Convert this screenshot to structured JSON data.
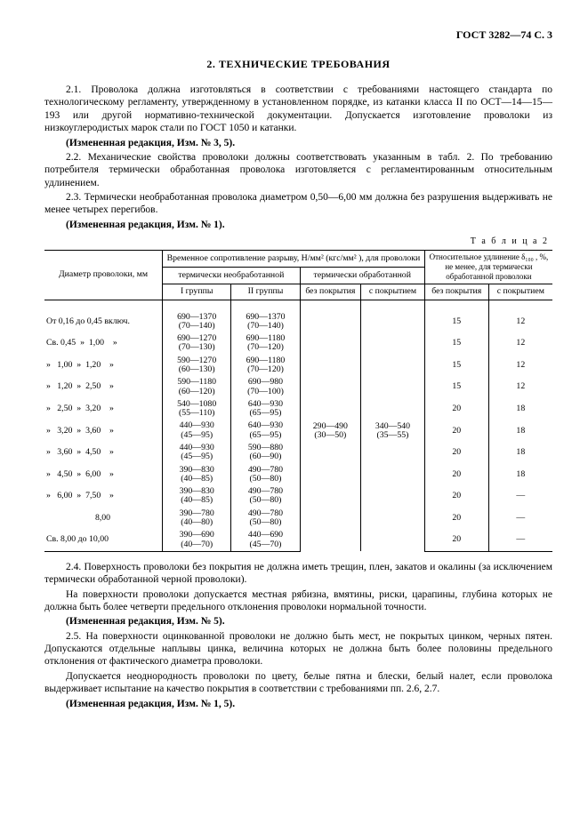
{
  "page_header": "ГОСТ 3282—74 С. 3",
  "section_title": "2. ТЕХНИЧЕСКИЕ ТРЕБОВАНИЯ",
  "p21": "2.1. Проволока должна изготовляться в соответствии с требованиями настоящего стандарта по технологическому регламенту, утвержденному в установленном порядке, из катанки класса II по ОСТ—14—15—193 или другой нормативно-технической документации. Допускается изготовление проволоки из низкоуглеродистых марок стали по ГОСТ 1050 и катанки.",
  "p21_note": "(Измененная редакция, Изм. № 3, 5).",
  "p22": "2.2. Механические свойства проволоки должны соответствовать указанным в табл. 2. По требованию потребителя термически обработанная проволока изготовляется с регламентированным относительным удлинением.",
  "p23": "2.3. Термически необработанная проволока диаметром 0,50—6,00 мм должна без разрушения выдерживать не менее четырех перегибов.",
  "p23_note": "(Измененная редакция, Изм. № 1).",
  "table_label": "Т а б л и ц а   2",
  "tbl": {
    "h_diam": "Диаметр проволоки, мм",
    "h_tensile": "Временное сопротивление разрыву, Н/мм² (кгс/мм² ), для проволоки",
    "h_elong": "Относительное удлинение δ₁₀₀ , %, не менее, для термически обработанной проволоки",
    "h_untreated": "термически необработанной",
    "h_treated": "термически обработанной",
    "h_g1": "I группы",
    "h_g2": "II группы",
    "h_nocoat": "без покрытия",
    "h_coat": "с покрытием",
    "rows": [
      {
        "d": "От 0,16 до 0,45 включ.",
        "c1a": "690—1370",
        "c1b": "(70—140)",
        "c2a": "690—1370",
        "c2b": "(70—140)",
        "e1": "15",
        "e2": "12"
      },
      {
        "d": "Св. 0,45  »  1,00    »",
        "c1a": "690—1270",
        "c1b": "(70—130)",
        "c2a": "690—1180",
        "c2b": "(70—120)",
        "e1": "15",
        "e2": "12"
      },
      {
        "d": "»   1,00  »  1,20    »",
        "c1a": "590—1270",
        "c1b": "(60—130)",
        "c2a": "690—1180",
        "c2b": "(70—120)",
        "e1": "15",
        "e2": "12"
      },
      {
        "d": "»   1,20  »  2,50    »",
        "c1a": "590—1180",
        "c1b": "(60—120)",
        "c2a": "690—980",
        "c2b": "(70—100)",
        "e1": "15",
        "e2": "12"
      },
      {
        "d": "»   2,50  »  3,20    »",
        "c1a": "540—1080",
        "c1b": "(55—110)",
        "c2a": "640—930",
        "c2b": "(65—95)",
        "e1": "20",
        "e2": "18"
      },
      {
        "d": "»   3,20  »  3,60    »",
        "c1a": "440—930",
        "c1b": "(45—95)",
        "c2a": "640—930",
        "c2b": "(65—95)",
        "e1": "20",
        "e2": "18"
      },
      {
        "d": "»   3,60  »  4,50    »",
        "c1a": "440—930",
        "c1b": "(45—95)",
        "c2a": "590—880",
        "c2b": "(60—90)",
        "e1": "20",
        "e2": "18"
      },
      {
        "d": "»   4,50  »  6,00    »",
        "c1a": "390—830",
        "c1b": "(40—85)",
        "c2a": "490—780",
        "c2b": "(50—80)",
        "e1": "20",
        "e2": "18"
      },
      {
        "d": "»   6,00  »  7,50    »",
        "c1a": "390—830",
        "c1b": "(40—85)",
        "c2a": "490—780",
        "c2b": "(50—80)",
        "e1": "20",
        "e2": "—"
      },
      {
        "d": "8,00",
        "c1a": "390—780",
        "c1b": "(40—80)",
        "c2a": "490—780",
        "c2b": "(50—80)",
        "e1": "20",
        "e2": "—"
      },
      {
        "d": "Св. 8,00 до 10,00",
        "c1a": "390—690",
        "c1b": "(40—70)",
        "c2a": "440—690",
        "c2b": "(45—70)",
        "e1": "20",
        "e2": "—"
      }
    ],
    "mid_c3a": "290—490",
    "mid_c3b": "(30—50)",
    "mid_c4a": "340—540",
    "mid_c4b": "(35—55)"
  },
  "p24": "2.4. Поверхность проволоки без покрытия не должна иметь трещин, плен, закатов и окалины (за исключением термически обработанной черной проволоки).",
  "p24b": "На поверхности проволоки допускается местная рябизна, вмятины, риски, царапины, глубина которых не должна быть более четверти предельного отклонения проволоки нормальной точности.",
  "p24_note": "(Измененная редакция, Изм. № 5).",
  "p25": "2.5. На поверхности оцинкованной проволоки не должно быть мест, не покрытых цинком, черных пятен. Допускаются отдельные наплывы цинка, величина которых не должна быть более половины предельного отклонения от фактического диаметра проволоки.",
  "p25b": "Допускается неоднородность проволоки по цвету, белые пятна и блески, белый налет, если проволока выдерживает испытание на качество покрытия в соответствии с требованиями пп. 2.6, 2.7.",
  "p25_note": "(Измененная редакция, Изм. № 1, 5)."
}
